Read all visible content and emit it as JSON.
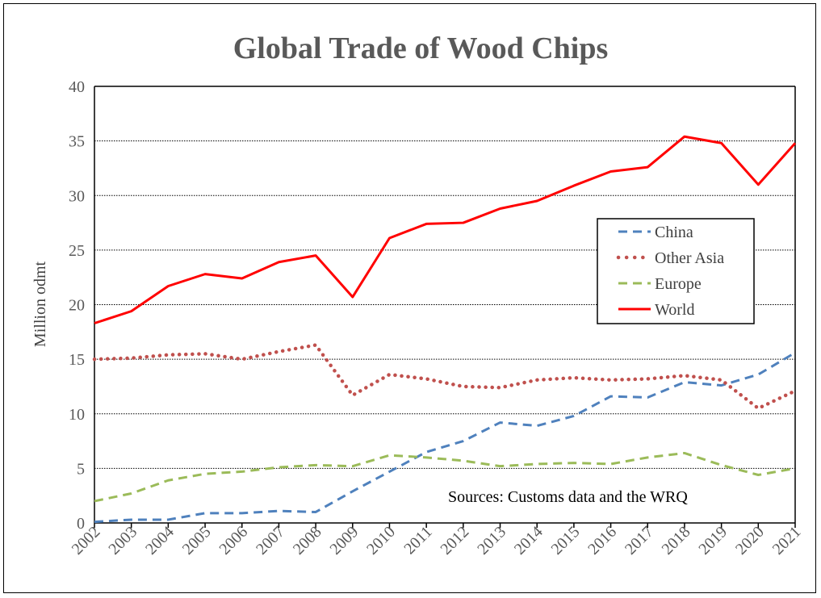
{
  "chart_data": {
    "type": "line",
    "title": "Global Trade of Wood Chips",
    "xlabel": "",
    "ylabel": "Million odmt",
    "x": [
      "2002",
      "2003",
      "2004",
      "2005",
      "2006",
      "2007",
      "2008",
      "2009",
      "2010",
      "2011",
      "2012",
      "2013",
      "2014",
      "2015",
      "2016",
      "2017",
      "2018",
      "2019",
      "2020",
      "2021"
    ],
    "ylim": [
      0,
      40
    ],
    "yticks": [
      "0",
      "5",
      "10",
      "15",
      "20",
      "25",
      "30",
      "35",
      "40"
    ],
    "grid": true,
    "legend_position": "right",
    "annotation": "Sources: Customs data and the WRQ",
    "series": [
      {
        "name": "China",
        "style": "dashed",
        "color": "#4F81BD",
        "values": [
          0.1,
          0.3,
          0.3,
          0.9,
          0.9,
          1.1,
          1.0,
          2.9,
          4.7,
          6.5,
          7.5,
          9.2,
          8.9,
          9.8,
          11.6,
          11.5,
          12.9,
          12.6,
          13.6,
          15.6
        ]
      },
      {
        "name": "Other Asia",
        "style": "dotted",
        "color": "#C0504D",
        "values": [
          15.0,
          15.1,
          15.4,
          15.5,
          15.0,
          15.7,
          16.3,
          11.7,
          13.6,
          13.2,
          12.5,
          12.4,
          13.1,
          13.3,
          13.1,
          13.2,
          13.5,
          13.1,
          10.5,
          12.1
        ]
      },
      {
        "name": "Europe",
        "style": "dashed",
        "color": "#9BBB59",
        "values": [
          2.0,
          2.7,
          3.9,
          4.5,
          4.7,
          5.1,
          5.3,
          5.2,
          6.2,
          6.0,
          5.7,
          5.2,
          5.4,
          5.5,
          5.4,
          6.0,
          6.4,
          5.3,
          4.4,
          5.0
        ]
      },
      {
        "name": "World",
        "style": "solid",
        "color": "#FF0000",
        "values": [
          18.3,
          19.4,
          21.7,
          22.8,
          22.4,
          23.9,
          24.5,
          20.7,
          26.1,
          27.4,
          27.5,
          28.8,
          29.5,
          30.9,
          32.2,
          32.6,
          35.4,
          34.8,
          31.0,
          34.8
        ]
      }
    ]
  }
}
